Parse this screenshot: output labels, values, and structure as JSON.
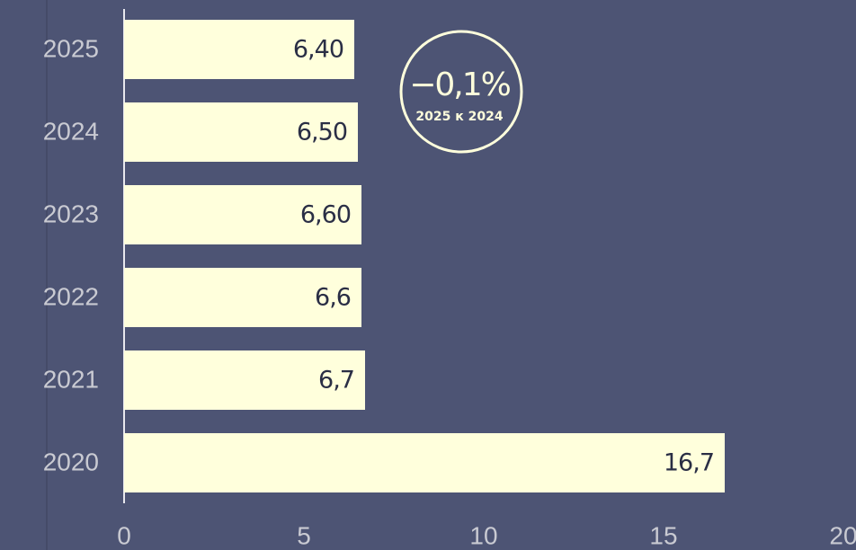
{
  "chart_data": {
    "type": "bar",
    "orientation": "horizontal",
    "categories": [
      "2025",
      "2024",
      "2023",
      "2022",
      "2021",
      "2020"
    ],
    "values": [
      6.4,
      6.5,
      6.6,
      6.6,
      6.7,
      16.7
    ],
    "value_labels": [
      "6,40",
      "6,50",
      "6,60",
      "6,6",
      "6,7",
      "16,7"
    ],
    "color": "#ffffdc",
    "xlim": [
      0,
      20
    ],
    "xticks": [
      0,
      5,
      10,
      15,
      20
    ],
    "annotation": {
      "value": "−0,1%",
      "subtitle": "2025 к 2024"
    }
  }
}
